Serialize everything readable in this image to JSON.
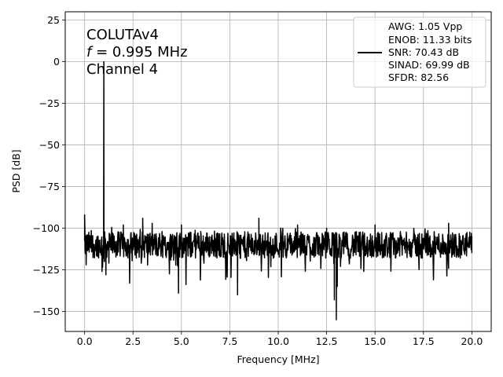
{
  "chart_data": {
    "type": "line",
    "title": "",
    "xlabel": "Frequency [MHz]",
    "ylabel": "PSD [dB]",
    "xlim": [
      -1.0,
      21.0
    ],
    "ylim": [
      -162,
      30
    ],
    "x_ticks": [
      0.0,
      2.5,
      5.0,
      7.5,
      10.0,
      12.5,
      15.0,
      17.5,
      20.0
    ],
    "x_tick_labels": [
      "0.0",
      "2.5",
      "5.0",
      "7.5",
      "10.0",
      "12.5",
      "15.0",
      "17.5",
      "20.0"
    ],
    "y_ticks": [
      25,
      0,
      -25,
      -50,
      -75,
      -100,
      -125,
      -150
    ],
    "y_tick_labels": [
      "25",
      "0",
      "−25",
      "−50",
      "−75",
      "−100",
      "−125",
      "−150"
    ],
    "grid": true,
    "legend_placement": "top-right",
    "annotation": {
      "line1": "COLUTAv4",
      "line2_var": "f",
      "line2_rest": " = 0.995 MHz",
      "line3": "Channel 4"
    },
    "legend_lines": [
      "AWG: 1.05 Vpp",
      "ENOB: 11.33 bits",
      "SNR: 70.43 dB",
      "SINAD: 69.99 dB",
      "SFDR: 82.56"
    ],
    "series": [
      {
        "color": "#000000",
        "noise_floor_db": -110,
        "noise_min_db": -140,
        "noise_max_db": -97,
        "x_range": [
          0.0,
          20.0
        ],
        "points": [
          {
            "x": 0.0,
            "y": -92
          },
          {
            "x": 0.02,
            "y": -112
          },
          {
            "x": 0.08,
            "y": -122
          },
          {
            "x": 0.9,
            "y": -126
          },
          {
            "x": 0.97,
            "y": -118
          },
          {
            "x": 0.995,
            "y": 0
          },
          {
            "x": 1.02,
            "y": -120
          },
          {
            "x": 1.1,
            "y": -128
          },
          {
            "x": 2.0,
            "y": -98
          },
          {
            "x": 3.0,
            "y": -94
          },
          {
            "x": 4.0,
            "y": -102
          },
          {
            "x": 4.85,
            "y": -139
          },
          {
            "x": 5.0,
            "y": -98
          },
          {
            "x": 6.0,
            "y": -102
          },
          {
            "x": 7.9,
            "y": -140
          },
          {
            "x": 9.0,
            "y": -94
          },
          {
            "x": 11.0,
            "y": -98
          },
          {
            "x": 12.5,
            "y": -100
          },
          {
            "x": 12.9,
            "y": -143
          },
          {
            "x": 13.0,
            "y": -155
          },
          {
            "x": 13.05,
            "y": -135
          },
          {
            "x": 15.0,
            "y": -98
          },
          {
            "x": 17.0,
            "y": -100
          },
          {
            "x": 18.8,
            "y": -97
          },
          {
            "x": 20.0,
            "y": -105
          }
        ]
      }
    ]
  }
}
